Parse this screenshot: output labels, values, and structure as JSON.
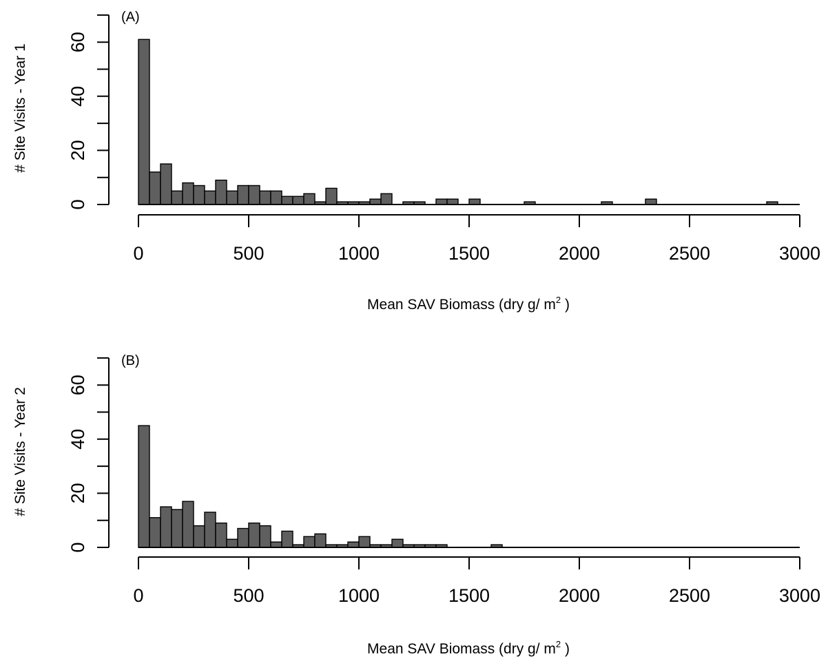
{
  "colors": {
    "bar_fill": "#5f5f5f",
    "bar_stroke": "#000000",
    "axis": "#000000",
    "background": "#ffffff"
  },
  "chart_data": [
    {
      "type": "bar",
      "panel_label": "(A)",
      "xlabel": "Mean SAV Biomass (dry g/ m",
      "xlabel_superscript": "2",
      "xlabel_suffix": " )",
      "ylabel": "# Site Visits - Year 1",
      "xlim": [
        0,
        3000
      ],
      "ylim": [
        0,
        70
      ],
      "x_ticks": [
        0,
        500,
        1000,
        1500,
        2000,
        2500,
        3000
      ],
      "y_ticks": [
        0,
        20,
        40,
        60
      ],
      "bin_width": 50,
      "bins_start": 0,
      "values": [
        61,
        12,
        15,
        5,
        8,
        7,
        5,
        9,
        5,
        7,
        7,
        5,
        5,
        3,
        3,
        4,
        1,
        6,
        1,
        1,
        1,
        2,
        4,
        0,
        1,
        1,
        0,
        2,
        2,
        0,
        2,
        0,
        0,
        0,
        0,
        1,
        0,
        0,
        0,
        0,
        0,
        0,
        1,
        0,
        0,
        0,
        2,
        0,
        0,
        0,
        0,
        0,
        0,
        0,
        0,
        0,
        0,
        1
      ]
    },
    {
      "type": "bar",
      "panel_label": "(B)",
      "xlabel": "Mean SAV Biomass (dry g/ m",
      "xlabel_superscript": "2",
      "xlabel_suffix": " )",
      "ylabel": "# Site Visits - Year 2",
      "xlim": [
        0,
        3000
      ],
      "ylim": [
        0,
        70
      ],
      "x_ticks": [
        0,
        500,
        1000,
        1500,
        2000,
        2500,
        3000
      ],
      "y_ticks": [
        0,
        20,
        40,
        60
      ],
      "bin_width": 50,
      "bins_start": 0,
      "values": [
        45,
        11,
        15,
        14,
        17,
        8,
        13,
        9,
        3,
        7,
        9,
        8,
        2,
        6,
        1,
        4,
        5,
        1,
        1,
        2,
        4,
        1,
        1,
        3,
        1,
        1,
        1,
        1,
        0,
        0,
        0,
        0,
        1
      ]
    }
  ]
}
